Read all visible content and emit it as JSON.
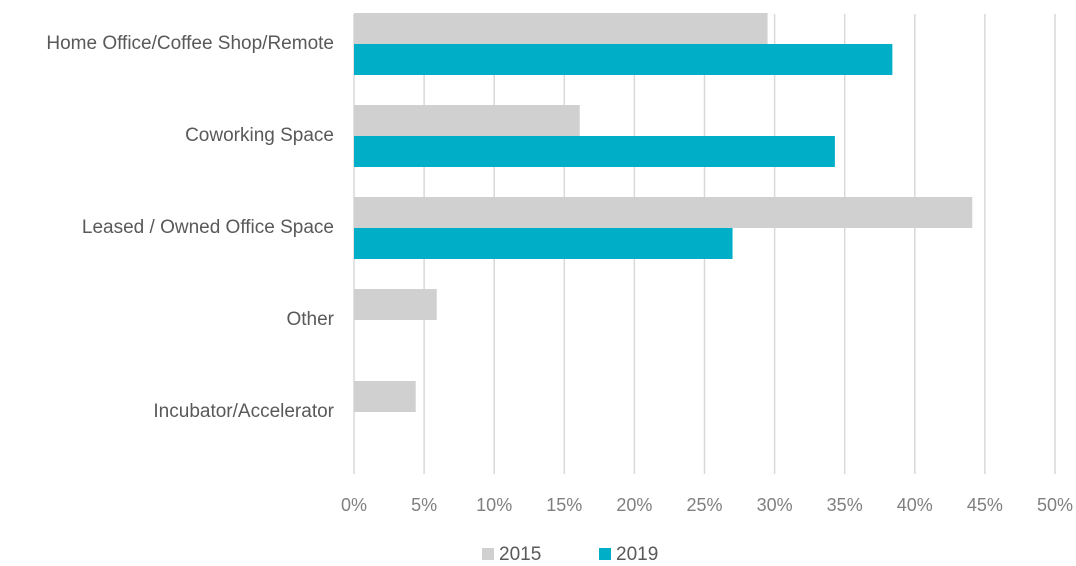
{
  "chart_data": {
    "type": "bar",
    "orientation": "horizontal",
    "title": "",
    "xlabel": "",
    "ylabel": "",
    "categories": [
      "Home Office/Coffee Shop/Remote",
      "Coworking Space",
      "Leased / Owned Office Space",
      "Other",
      "Incubator/Accelerator"
    ],
    "series": [
      {
        "name": "2015",
        "color": "#d0d0d0",
        "values": [
          29.5,
          16.1,
          44.1,
          5.9,
          4.4
        ]
      },
      {
        "name": "2019",
        "color": "#00aec7",
        "values": [
          38.4,
          34.3,
          27.0,
          0,
          0
        ]
      }
    ],
    "xlim": [
      0,
      50
    ],
    "x_ticks": [
      "0%",
      "5%",
      "10%",
      "15%",
      "20%",
      "25%",
      "30%",
      "35%",
      "40%",
      "45%",
      "50%"
    ],
    "grid": true,
    "legend": "bottom-center"
  }
}
